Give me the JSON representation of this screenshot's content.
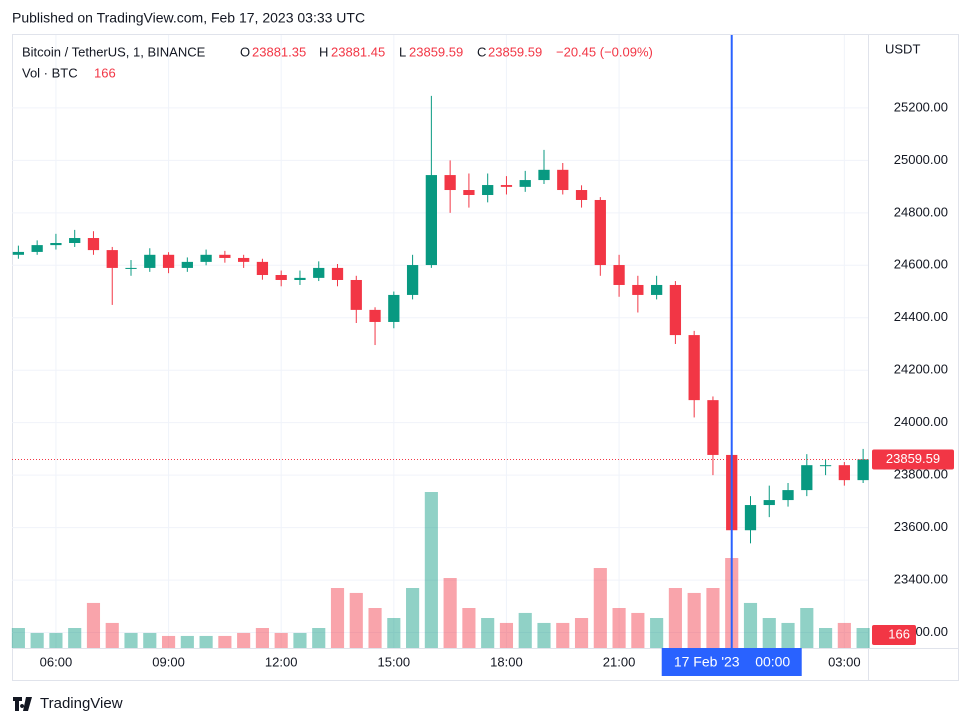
{
  "header": {
    "published": "Published on TradingView.com, Feb 17, 2023 03:33 UTC"
  },
  "footer": {
    "brand": "TradingView"
  },
  "chart_data": {
    "type": "candlestick",
    "legend": {
      "symbol": "Bitcoin / TetherUS, 1, BINANCE",
      "open_label": "O",
      "open": 23881.35,
      "high_label": "H",
      "high": 23881.45,
      "low_label": "L",
      "low": 23859.59,
      "close_label": "C",
      "close": 23859.59,
      "change": "−20.45 (−0.09%)",
      "volume_label": "Vol · BTC",
      "volume": 166
    },
    "currency": "USDT",
    "x": [
      5,
      5.5,
      6,
      6.5,
      7,
      7.5,
      8,
      8.5,
      9,
      9.5,
      10,
      10.5,
      11,
      11.5,
      12,
      12.5,
      13,
      13.5,
      14,
      14.5,
      15,
      15.5,
      16,
      16.5,
      17,
      17.5,
      18,
      18.5,
      19,
      19.5,
      20,
      20.5,
      21,
      21.5,
      22,
      22.5,
      23,
      23.5,
      24,
      24.5,
      25,
      25.5,
      26,
      26.5,
      27,
      27.5
    ],
    "open": [
      24640,
      24651,
      24677,
      24685,
      24704,
      24658,
      24590,
      24590,
      24640,
      24590,
      24613,
      24640,
      24628,
      24613,
      24563,
      24544,
      24552,
      24590,
      24544,
      24430,
      24384,
      24487,
      24601,
      24944,
      24887,
      24868,
      24906,
      24899,
      24925,
      24964,
      24887,
      24849,
      24601,
      24525,
      24487,
      24525,
      24334,
      24086,
      23877,
      23590,
      23686,
      23705,
      23743,
      23838,
      23838,
      23781
    ],
    "high": [
      24675,
      24695,
      24720,
      24735,
      24730,
      24670,
      24620,
      24665,
      24650,
      24630,
      24660,
      24655,
      24640,
      24625,
      24580,
      24580,
      24615,
      24605,
      24560,
      24440,
      24500,
      24640,
      25246,
      25000,
      24950,
      24950,
      24940,
      24960,
      25040,
      24990,
      24905,
      24860,
      24640,
      24560,
      24560,
      24540,
      24350,
      24100,
      23900,
      23720,
      23760,
      23770,
      23880,
      23860,
      23850,
      23900
    ],
    "low": [
      24625,
      24640,
      24660,
      24670,
      24640,
      24449,
      24560,
      24575,
      24570,
      24575,
      24600,
      24610,
      24590,
      24545,
      24520,
      24525,
      24540,
      24520,
      24380,
      24296,
      24360,
      24470,
      24590,
      24800,
      24820,
      24840,
      24870,
      24880,
      24910,
      24870,
      24820,
      24560,
      24480,
      24420,
      24470,
      24300,
      24020,
      23800,
      23419,
      23540,
      23640,
      23680,
      23720,
      23800,
      23760,
      23770
    ],
    "close": [
      24651,
      24677,
      24685,
      24704,
      24658,
      24590,
      24590,
      24640,
      24590,
      24613,
      24640,
      24628,
      24613,
      24563,
      24544,
      24552,
      24590,
      24544,
      24430,
      24384,
      24487,
      24601,
      24944,
      24887,
      24868,
      24906,
      24899,
      24925,
      24964,
      24887,
      24849,
      24601,
      24525,
      24487,
      24525,
      24334,
      24086,
      23877,
      23590,
      23686,
      23705,
      23743,
      23838,
      23838,
      23781,
      23860
    ],
    "volume": [
      166,
      125,
      125,
      166,
      374,
      208,
      125,
      125,
      100,
      100,
      100,
      100,
      125,
      166,
      125,
      125,
      166,
      498,
      457,
      332,
      249,
      498,
      1295,
      581,
      332,
      249,
      208,
      291,
      208,
      208,
      249,
      664,
      332,
      291,
      249,
      498,
      457,
      498,
      747,
      374,
      249,
      208,
      332,
      166,
      208,
      166
    ],
    "up_color": "#089981",
    "down_color": "#f23645",
    "xlim": [
      4.83,
      27.63
    ],
    "xticks": [
      {
        "value": 6,
        "label": "06:00"
      },
      {
        "value": 9,
        "label": "09:00"
      },
      {
        "value": 12,
        "label": "12:00"
      },
      {
        "value": 15,
        "label": "15:00"
      },
      {
        "value": 18,
        "label": "18:00"
      },
      {
        "value": 21,
        "label": "21:00"
      },
      {
        "value": 27,
        "label": "03:00"
      }
    ],
    "ylim": [
      23141,
      25478
    ],
    "yticks": [
      {
        "value": 23200,
        "label": "23200.00"
      },
      {
        "value": 23400,
        "label": "23400.00"
      },
      {
        "value": 23600,
        "label": "23600.00"
      },
      {
        "value": 23800,
        "label": "23800.00"
      },
      {
        "value": 24000,
        "label": "24000.00"
      },
      {
        "value": 24200,
        "label": "24200.00"
      },
      {
        "value": 24400,
        "label": "24400.00"
      },
      {
        "value": 24600,
        "label": "24600.00"
      },
      {
        "value": 24800,
        "label": "24800.00"
      },
      {
        "value": 25000,
        "label": "25000.00"
      },
      {
        "value": 25200,
        "label": "25200.00"
      }
    ],
    "last_price": 23859.59,
    "crosshair": {
      "x": 24,
      "date_label": "17 Feb '23",
      "time_label": "00:00",
      "color": "#2962ff"
    },
    "grid": true
  }
}
